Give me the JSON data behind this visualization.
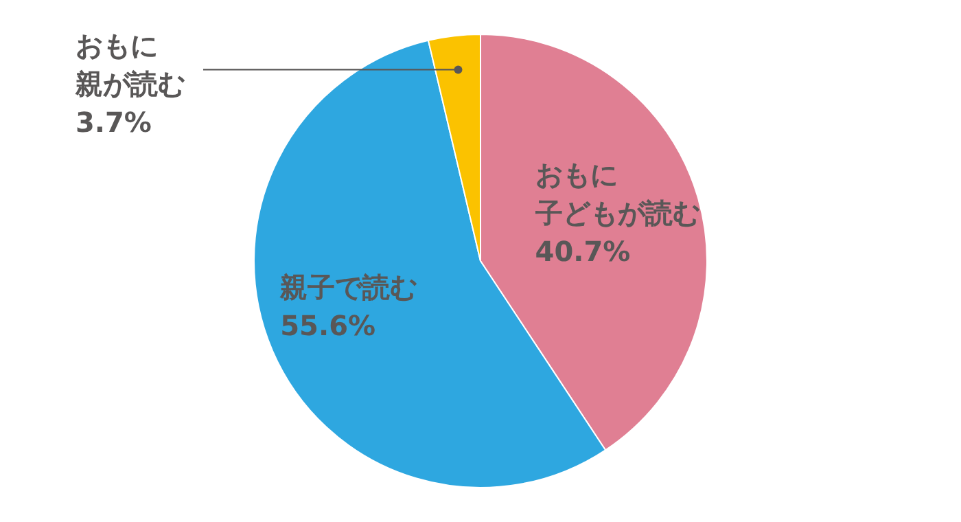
{
  "chart_data": {
    "type": "pie",
    "categories": [
      "おもに子どもが読む",
      "親子で読む",
      "おもに親が読む"
    ],
    "values": [
      40.7,
      55.6,
      3.7
    ],
    "value_labels": [
      "40.7%",
      "55.6%",
      "3.7%"
    ],
    "colors": [
      "#e07f93",
      "#2ea7e0",
      "#fbc200"
    ]
  }
}
